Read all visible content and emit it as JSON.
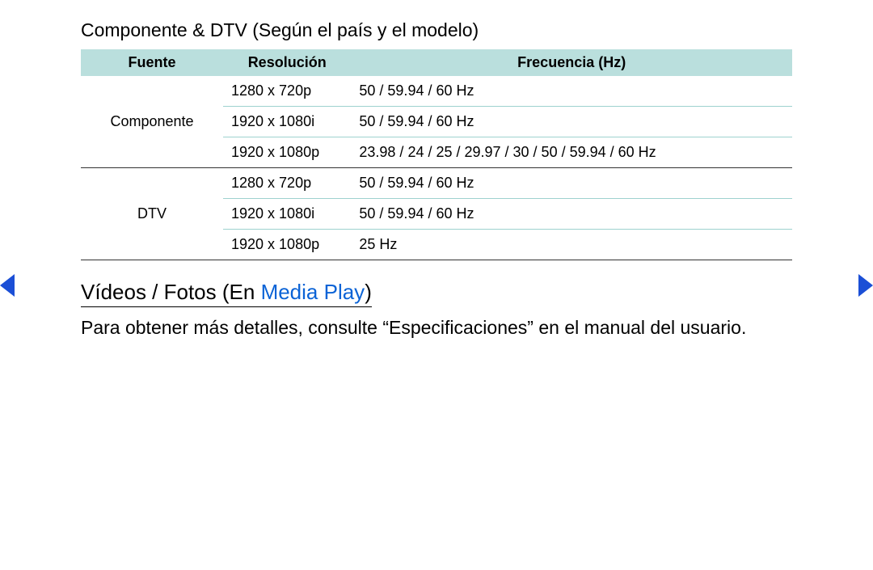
{
  "heading": "Componente & DTV (Según el país y el modelo)",
  "colors": {
    "header_bg": "#badfdd",
    "row_border": "#9ed2cf",
    "group_border": "#333333",
    "accent": "#0b63d6",
    "nav_arrow": "#1b4fd6",
    "text": "#000000",
    "background": "#ffffff"
  },
  "table": {
    "columns": [
      "Fuente",
      "Resolución",
      "Frecuencia (Hz)"
    ],
    "col_widths": [
      "20%",
      "18%",
      "62%"
    ],
    "groups": [
      {
        "source": "Componente",
        "rows": [
          {
            "resolution": "1280 x 720p",
            "frequency": "50 / 59.94 / 60 Hz"
          },
          {
            "resolution": "1920 x 1080i",
            "frequency": "50 / 59.94 / 60 Hz"
          },
          {
            "resolution": "1920 x 1080p",
            "frequency": "23.98 / 24 / 25 / 29.97 / 30 / 50 / 59.94 / 60 Hz"
          }
        ]
      },
      {
        "source": "DTV",
        "rows": [
          {
            "resolution": "1280 x 720p",
            "frequency": "50 / 59.94 / 60 Hz"
          },
          {
            "resolution": "1920 x 1080i",
            "frequency": "50 / 59.94 / 60 Hz"
          },
          {
            "resolution": "1920 x 1080p",
            "frequency": "25 Hz"
          }
        ]
      }
    ]
  },
  "subheading": {
    "prefix": "Vídeos / Fotos (En ",
    "highlight": "Media Play",
    "suffix": ")"
  },
  "paragraph": "Para obtener más detalles, consulte “Especificaciones” en el manual del usuario."
}
